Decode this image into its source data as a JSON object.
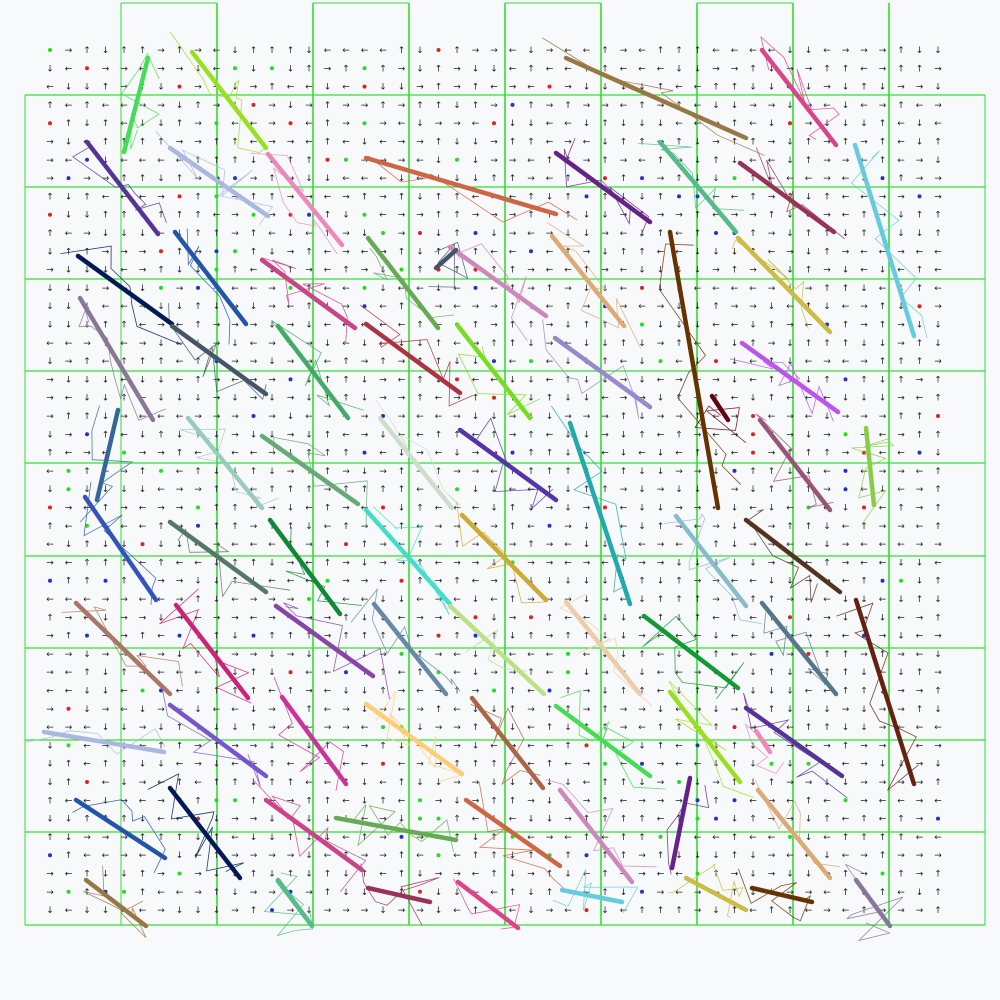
{
  "diagram": {
    "grid_lines": {
      "color": "#33dd33"
    },
    "arrow_glyphs": {
      "right": "→",
      "left": "←",
      "up": "↑",
      "down": "↓"
    },
    "marker_colors": {
      "red": "#dd2222",
      "blue": "#2233cc",
      "green": "#22dd22"
    },
    "segment_colors": [
      "#44dd55",
      "#99e022",
      "#553399",
      "#a8b8e0",
      "#ee88bb",
      "#2255aa",
      "#001a55",
      "#cc4488",
      "#66aa55",
      "#cc6644",
      "#cc88bb",
      "#662288",
      "#ddaa77",
      "#997744",
      "#55bb88",
      "#993355",
      "#dd4488",
      "#66ccdd",
      "#ccbb44",
      "#663300",
      "#887799",
      "#445566",
      "#44aa66",
      "#aa3344",
      "#77dd22",
      "#9988cc",
      "#bb55ee",
      "#336699",
      "#99ccbb",
      "#66aa77",
      "#ccddcc",
      "#5533aa",
      "#22aaaa",
      "#660011",
      "#995577",
      "#88cc44",
      "#3355bb",
      "#557766",
      "#118833",
      "#44ddcc",
      "#ccaa33",
      "#88bbcc",
      "#553322",
      "#aa7766",
      "#cc2277",
      "#8844aa",
      "#6688aa",
      "#bbe088",
      "#eeccaa",
      "#119933",
      "#557788",
      "#662211",
      "#7755cc",
      "#cc3399",
      "#ffcc77",
      "#aa6644"
    ]
  }
}
